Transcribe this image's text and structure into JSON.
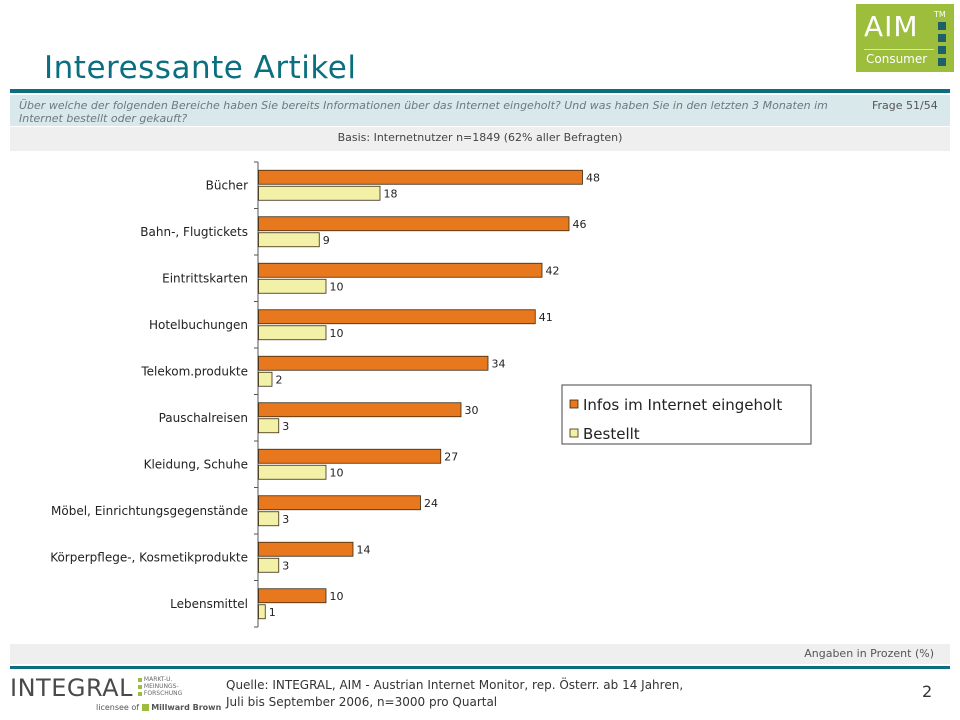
{
  "header": {
    "title": "Interessante Artikel",
    "logo": {
      "brand": "AIM",
      "tm": "TM",
      "sub": "Consumer"
    }
  },
  "question": {
    "text": "Über welche der folgenden Bereiche haben Sie bereits Informationen über das Internet eingeholt? Und was haben Sie in den letzten 3 Monaten im Internet bestellt oder gekauft?",
    "frage": "Frage 51/54"
  },
  "basis": "Basis: Internetnutzer n=1849 (62% aller Befragten)",
  "chart_data": {
    "type": "bar",
    "orientation": "horizontal",
    "categories": [
      "Bücher",
      "Bahn-, Flugtickets",
      "Eintrittskarten",
      "Hotelbuchungen",
      "Telekom.produkte",
      "Pauschalreisen",
      "Kleidung, Schuhe",
      "Möbel, Einrichtungsgegenstände",
      "Körperpflege-, Kosmetikprodukte",
      "Lebensmittel"
    ],
    "series": [
      {
        "name": "Infos im Internet eingeholt",
        "color": "#e8781e",
        "values": [
          48,
          46,
          42,
          41,
          34,
          30,
          27,
          24,
          14,
          10
        ]
      },
      {
        "name": "Bestellt",
        "color": "#f3f0a8",
        "values": [
          18,
          9,
          10,
          10,
          2,
          3,
          10,
          3,
          3,
          1
        ]
      }
    ],
    "xlim": [
      0,
      100
    ],
    "legend": "right",
    "grid": false
  },
  "footer": {
    "unit_note": "Angaben in Prozent (%)",
    "company": "INTEGRAL",
    "company_sub": [
      "MARKT-U.",
      "MEINUNGS-",
      "FORSCHUNG"
    ],
    "licensee": "licensee of",
    "licensee_brand": "Millward Brown",
    "source_line1": "Quelle: INTEGRAL, AIM - Austrian Internet Monitor, rep. Österr. ab 14 Jahren,",
    "source_line2": "Juli bis September 2006, n=3000 pro Quartal",
    "page": "2"
  }
}
